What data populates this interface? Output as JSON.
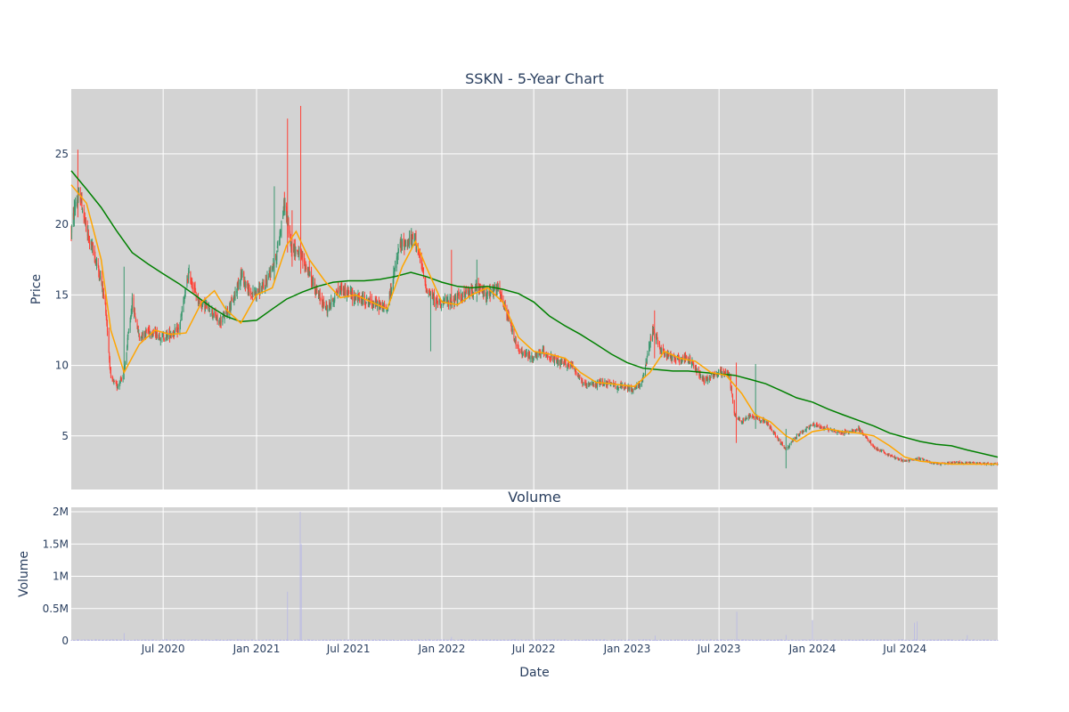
{
  "chart_data": [
    {
      "type": "candlestick",
      "title": "SSKN - 5-Year Chart",
      "xlabel": "",
      "ylabel": "Price",
      "x_range": [
        "2020-01-02",
        "2024-12-31"
      ],
      "ylim": [
        1.2,
        29.6
      ],
      "y_ticks": [
        5,
        10,
        15,
        20,
        25
      ],
      "grid": true,
      "colors": {
        "up": "#3d9970",
        "down": "#ff4136",
        "ma50": "#ffa500",
        "ma200": "#008000",
        "plot_bg": "#d3d3d3",
        "grid": "#ffffff"
      },
      "price_anchors": [
        [
          "2020-01-02",
          19.5
        ],
        [
          "2020-01-10",
          21.5
        ],
        [
          "2020-01-20",
          22.0
        ],
        [
          "2020-02-01",
          19.5
        ],
        [
          "2020-02-15",
          18.0
        ],
        [
          "2020-03-01",
          16.0
        ],
        [
          "2020-03-10",
          14.0
        ],
        [
          "2020-03-20",
          9.0
        ],
        [
          "2020-04-01",
          8.5
        ],
        [
          "2020-04-15",
          9.5
        ],
        [
          "2020-05-01",
          14.5
        ],
        [
          "2020-05-15",
          12.0
        ],
        [
          "2020-06-01",
          12.5
        ],
        [
          "2020-07-01",
          12.0
        ],
        [
          "2020-08-01",
          12.5
        ],
        [
          "2020-08-20",
          16.5
        ],
        [
          "2020-09-10",
          14.5
        ],
        [
          "2020-10-01",
          14.0
        ],
        [
          "2020-10-20",
          13.0
        ],
        [
          "2020-11-15",
          14.5
        ],
        [
          "2020-12-01",
          16.5
        ],
        [
          "2020-12-20",
          15.0
        ],
        [
          "2021-01-15",
          15.5
        ],
        [
          "2021-02-10",
          18.0
        ],
        [
          "2021-02-25",
          21.5
        ],
        [
          "2021-03-10",
          18.5
        ],
        [
          "2021-03-25",
          18.0
        ],
        [
          "2021-04-15",
          16.5
        ],
        [
          "2021-05-01",
          15.0
        ],
        [
          "2021-05-20",
          14.0
        ],
        [
          "2021-06-15",
          15.5
        ],
        [
          "2021-07-15",
          14.8
        ],
        [
          "2021-08-15",
          14.5
        ],
        [
          "2021-09-15",
          14.0
        ],
        [
          "2021-10-10",
          18.5
        ],
        [
          "2021-11-10",
          19.0
        ],
        [
          "2021-12-01",
          15.5
        ],
        [
          "2021-12-20",
          14.5
        ],
        [
          "2022-01-15",
          14.5
        ],
        [
          "2022-02-15",
          15.0
        ],
        [
          "2022-03-10",
          15.5
        ],
        [
          "2022-04-01",
          15.0
        ],
        [
          "2022-04-20",
          15.5
        ],
        [
          "2022-05-15",
          13.0
        ],
        [
          "2022-06-01",
          11.0
        ],
        [
          "2022-07-01",
          10.5
        ],
        [
          "2022-07-20",
          11.0
        ],
        [
          "2022-08-15",
          10.2
        ],
        [
          "2022-09-15",
          10.0
        ],
        [
          "2022-10-10",
          8.5
        ],
        [
          "2022-11-15",
          8.8
        ],
        [
          "2022-12-15",
          8.5
        ],
        [
          "2023-01-15",
          8.3
        ],
        [
          "2023-02-01",
          9.0
        ],
        [
          "2023-02-20",
          12.5
        ],
        [
          "2023-03-10",
          11.0
        ],
        [
          "2023-04-01",
          10.5
        ],
        [
          "2023-05-01",
          10.5
        ],
        [
          "2023-06-01",
          9.0
        ],
        [
          "2023-07-01",
          9.5
        ],
        [
          "2023-07-20",
          9.5
        ],
        [
          "2023-08-01",
          6.5
        ],
        [
          "2023-08-15",
          6.0
        ],
        [
          "2023-09-01",
          6.5
        ],
        [
          "2023-10-01",
          6.0
        ],
        [
          "2023-11-10",
          4.0
        ],
        [
          "2023-12-01",
          5.0
        ],
        [
          "2024-01-01",
          5.8
        ],
        [
          "2024-02-01",
          5.5
        ],
        [
          "2024-03-01",
          5.2
        ],
        [
          "2024-04-01",
          5.5
        ],
        [
          "2024-05-01",
          4.2
        ],
        [
          "2024-06-01",
          3.6
        ],
        [
          "2024-07-01",
          3.2
        ],
        [
          "2024-08-01",
          3.4
        ],
        [
          "2024-09-01",
          3.0
        ],
        [
          "2024-10-01",
          3.1
        ],
        [
          "2024-11-01",
          3.1
        ],
        [
          "2024-12-31",
          3.0
        ]
      ],
      "spikes": [
        {
          "date": "2020-01-15",
          "high": 25.3,
          "low": 20.5
        },
        {
          "date": "2020-04-15",
          "high": 17.0,
          "low": 9.0
        },
        {
          "date": "2021-02-05",
          "high": 22.7,
          "low": 16.0
        },
        {
          "date": "2021-03-03",
          "high": 27.5,
          "low": 18.0
        },
        {
          "date": "2021-03-12",
          "high": 21.0,
          "low": 17.0
        },
        {
          "date": "2021-03-28",
          "high": 28.4,
          "low": 16.5
        },
        {
          "date": "2021-12-10",
          "high": 15.0,
          "low": 11.0
        },
        {
          "date": "2022-01-20",
          "high": 18.2,
          "low": 14.0
        },
        {
          "date": "2022-03-12",
          "high": 17.5,
          "low": 14.5
        },
        {
          "date": "2023-02-25",
          "high": 13.9,
          "low": 10.5
        },
        {
          "date": "2023-08-05",
          "high": 10.2,
          "low": 4.5
        },
        {
          "date": "2023-09-10",
          "high": 10.1,
          "low": 5.5
        },
        {
          "date": "2023-11-10",
          "high": 5.5,
          "low": 2.7
        }
      ],
      "ma50_anchors": [
        [
          "2020-01-02",
          22.8
        ],
        [
          "2020-02-01",
          21.5
        ],
        [
          "2020-03-01",
          17.5
        ],
        [
          "2020-03-20",
          12.5
        ],
        [
          "2020-04-15",
          9.5
        ],
        [
          "2020-05-15",
          11.5
        ],
        [
          "2020-06-15",
          12.5
        ],
        [
          "2020-07-15",
          12.2
        ],
        [
          "2020-08-15",
          12.3
        ],
        [
          "2020-09-15",
          14.5
        ],
        [
          "2020-10-10",
          15.3
        ],
        [
          "2020-11-01",
          14.0
        ],
        [
          "2020-12-01",
          13.0
        ],
        [
          "2021-01-01",
          15.0
        ],
        [
          "2021-02-01",
          15.5
        ],
        [
          "2021-03-01",
          18.5
        ],
        [
          "2021-03-20",
          19.5
        ],
        [
          "2021-04-15",
          17.5
        ],
        [
          "2021-05-15",
          16.0
        ],
        [
          "2021-06-15",
          14.8
        ],
        [
          "2021-07-15",
          15.0
        ],
        [
          "2021-08-15",
          14.5
        ],
        [
          "2021-09-15",
          14.0
        ],
        [
          "2021-10-15",
          17.0
        ],
        [
          "2021-11-10",
          18.8
        ],
        [
          "2021-12-01",
          17.0
        ],
        [
          "2022-01-01",
          14.5
        ],
        [
          "2022-02-01",
          14.3
        ],
        [
          "2022-03-01",
          15.0
        ],
        [
          "2022-04-01",
          15.5
        ],
        [
          "2022-05-01",
          14.5
        ],
        [
          "2022-06-01",
          12.0
        ],
        [
          "2022-07-01",
          11.0
        ],
        [
          "2022-08-01",
          10.8
        ],
        [
          "2022-09-01",
          10.5
        ],
        [
          "2022-10-01",
          9.5
        ],
        [
          "2022-11-01",
          8.8
        ],
        [
          "2022-12-01",
          8.7
        ],
        [
          "2023-01-15",
          8.5
        ],
        [
          "2023-02-15",
          9.5
        ],
        [
          "2023-03-15",
          11.0
        ],
        [
          "2023-04-15",
          10.5
        ],
        [
          "2023-05-15",
          10.3
        ],
        [
          "2023-06-15",
          9.5
        ],
        [
          "2023-07-15",
          9.3
        ],
        [
          "2023-08-15",
          8.0
        ],
        [
          "2023-09-10",
          6.5
        ],
        [
          "2023-10-10",
          6.0
        ],
        [
          "2023-11-10",
          5.0
        ],
        [
          "2023-12-01",
          4.6
        ],
        [
          "2024-01-01",
          5.3
        ],
        [
          "2024-02-01",
          5.5
        ],
        [
          "2024-03-01",
          5.3
        ],
        [
          "2024-04-01",
          5.2
        ],
        [
          "2024-05-01",
          5.0
        ],
        [
          "2024-06-01",
          4.3
        ],
        [
          "2024-07-01",
          3.5
        ],
        [
          "2024-08-01",
          3.2
        ],
        [
          "2024-09-01",
          3.1
        ],
        [
          "2024-10-01",
          3.0
        ],
        [
          "2024-11-01",
          3.0
        ],
        [
          "2024-12-31",
          3.0
        ]
      ],
      "ma200_anchors": [
        [
          "2020-01-02",
          23.8
        ],
        [
          "2020-02-01",
          22.5
        ],
        [
          "2020-03-01",
          21.2
        ],
        [
          "2020-04-01",
          19.5
        ],
        [
          "2020-05-01",
          18.0
        ],
        [
          "2020-06-01",
          17.2
        ],
        [
          "2020-07-01",
          16.5
        ],
        [
          "2020-08-01",
          15.8
        ],
        [
          "2020-09-01",
          15.0
        ],
        [
          "2020-10-01",
          14.2
        ],
        [
          "2020-11-01",
          13.5
        ],
        [
          "2020-12-01",
          13.1
        ],
        [
          "2021-01-01",
          13.2
        ],
        [
          "2021-02-01",
          14.0
        ],
        [
          "2021-03-01",
          14.7
        ],
        [
          "2021-04-01",
          15.2
        ],
        [
          "2021-05-01",
          15.6
        ],
        [
          "2021-06-01",
          15.9
        ],
        [
          "2021-07-01",
          16.0
        ],
        [
          "2021-08-01",
          16.0
        ],
        [
          "2021-09-01",
          16.1
        ],
        [
          "2021-10-01",
          16.3
        ],
        [
          "2021-11-01",
          16.6
        ],
        [
          "2021-12-01",
          16.3
        ],
        [
          "2022-01-01",
          15.9
        ],
        [
          "2022-02-01",
          15.6
        ],
        [
          "2022-03-01",
          15.5
        ],
        [
          "2022-04-01",
          15.6
        ],
        [
          "2022-05-01",
          15.4
        ],
        [
          "2022-06-01",
          15.1
        ],
        [
          "2022-07-01",
          14.5
        ],
        [
          "2022-08-01",
          13.5
        ],
        [
          "2022-09-01",
          12.8
        ],
        [
          "2022-10-01",
          12.2
        ],
        [
          "2022-11-01",
          11.5
        ],
        [
          "2022-12-01",
          10.8
        ],
        [
          "2023-01-01",
          10.2
        ],
        [
          "2023-02-01",
          9.8
        ],
        [
          "2023-03-01",
          9.7
        ],
        [
          "2023-04-01",
          9.6
        ],
        [
          "2023-05-01",
          9.6
        ],
        [
          "2023-06-01",
          9.5
        ],
        [
          "2023-07-01",
          9.4
        ],
        [
          "2023-08-01",
          9.3
        ],
        [
          "2023-09-01",
          9.0
        ],
        [
          "2023-10-01",
          8.7
        ],
        [
          "2023-11-01",
          8.2
        ],
        [
          "2023-12-01",
          7.7
        ],
        [
          "2024-01-01",
          7.4
        ],
        [
          "2024-02-01",
          6.9
        ],
        [
          "2024-03-01",
          6.5
        ],
        [
          "2024-04-01",
          6.1
        ],
        [
          "2024-05-01",
          5.7
        ],
        [
          "2024-06-01",
          5.2
        ],
        [
          "2024-07-01",
          4.9
        ],
        [
          "2024-08-01",
          4.6
        ],
        [
          "2024-09-01",
          4.4
        ],
        [
          "2024-10-01",
          4.3
        ],
        [
          "2024-11-01",
          4.0
        ],
        [
          "2024-12-31",
          3.5
        ]
      ],
      "x_ticks": [
        {
          "date": "2020-07-01",
          "label": "Jul 2020"
        },
        {
          "date": "2021-01-01",
          "label": "Jan 2021"
        },
        {
          "date": "2021-07-01",
          "label": "Jul 2021"
        },
        {
          "date": "2022-01-01",
          "label": "Jan 2022"
        },
        {
          "date": "2022-07-01",
          "label": "Jul 2022"
        },
        {
          "date": "2023-01-01",
          "label": "Jan 2023"
        },
        {
          "date": "2023-07-01",
          "label": "Jul 2023"
        },
        {
          "date": "2024-01-01",
          "label": "Jan 2024"
        },
        {
          "date": "2024-07-01",
          "label": "Jul 2024"
        }
      ]
    },
    {
      "type": "bar",
      "title": "Volume",
      "xlabel": "Date",
      "ylabel": "Volume",
      "ylim": [
        0,
        2000000
      ],
      "y_ticks": [
        {
          "value": 0,
          "label": "0"
        },
        {
          "value": 500000,
          "label": "0.5M"
        },
        {
          "value": 1000000,
          "label": "1M"
        },
        {
          "value": 1500000,
          "label": "1.5M"
        },
        {
          "value": 2000000,
          "label": "2M"
        }
      ],
      "grid": true,
      "colors": {
        "bar": "#b8b8e6",
        "plot_bg": "#d3d3d3",
        "grid": "#ffffff"
      },
      "base_volume": 15000,
      "spikes": [
        {
          "date": "2020-04-15",
          "value": 120000
        },
        {
          "date": "2021-03-03",
          "value": 760000
        },
        {
          "date": "2021-03-28",
          "value": 2000000
        },
        {
          "date": "2021-03-30",
          "value": 1500000
        },
        {
          "date": "2022-01-20",
          "value": 60000
        },
        {
          "date": "2023-02-25",
          "value": 80000
        },
        {
          "date": "2023-08-05",
          "value": 450000
        },
        {
          "date": "2023-11-10",
          "value": 90000
        },
        {
          "date": "2024-01-01",
          "value": 320000
        },
        {
          "date": "2024-07-20",
          "value": 280000
        },
        {
          "date": "2024-07-25",
          "value": 300000
        },
        {
          "date": "2024-11-01",
          "value": 90000
        }
      ]
    }
  ]
}
